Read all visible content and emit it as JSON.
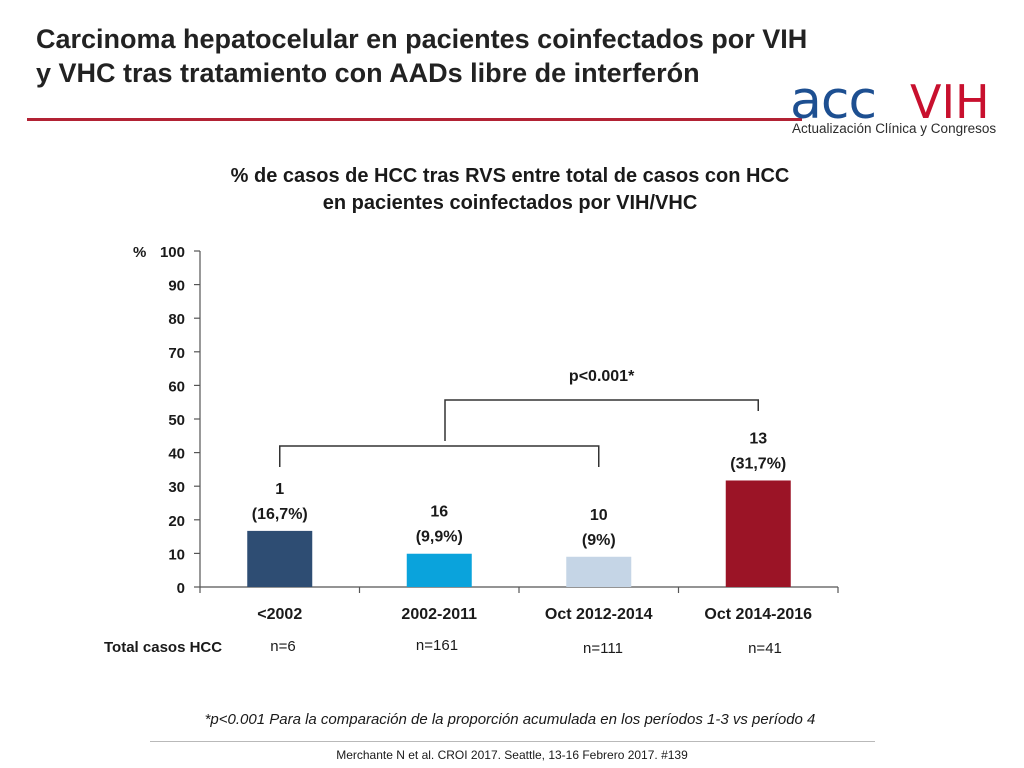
{
  "slide": {
    "title_line1": "Carcinoma hepatocelular en pacientes coinfectados por VIH",
    "title_line2": "y VHC tras tratamiento con AADs libre de interferón",
    "accent_color": "#b22234",
    "footnote": "*p<0.001 Para la comparación de la proporción acumulada en los períodos 1-3 vs período 4",
    "citation": "Merchante N et al. CROI 2017. Seattle, 13-16 Febrero 2017. #139"
  },
  "logo": {
    "part1": "acc",
    "part2": "VIH",
    "tagline": "Actualización Clínica y Congresos",
    "color_blue": "#1d4f91",
    "color_red": "#c8102e"
  },
  "chart_data": {
    "type": "bar",
    "title_line1": "% de casos de HCC tras RVS entre total de casos con HCC",
    "title_line2": "en pacientes coinfectados por VIH/VHC",
    "ylabel": "%",
    "ylim": [
      0,
      100
    ],
    "yticks": [
      0,
      10,
      20,
      30,
      40,
      50,
      60,
      70,
      80,
      90,
      100
    ],
    "categories": [
      "<2002",
      "2002-2011",
      "Oct 2012-2014",
      "Oct 2014-2016"
    ],
    "values": [
      16.7,
      9.9,
      9,
      31.7
    ],
    "label_counts": [
      "1",
      "16",
      "10",
      "13"
    ],
    "label_percents": [
      "(16,7%)",
      "(9,9%)",
      "(9%)",
      "(31,7%)"
    ],
    "colors": [
      "#2e4d73",
      "#0aa3dc",
      "#c5d5e6",
      "#9b1426"
    ],
    "totals_label": "Total casos HCC",
    "totals": [
      "n=6",
      "n=161",
      "n=111",
      "n=41"
    ],
    "annotation": "p<0.001*",
    "grid": false
  }
}
